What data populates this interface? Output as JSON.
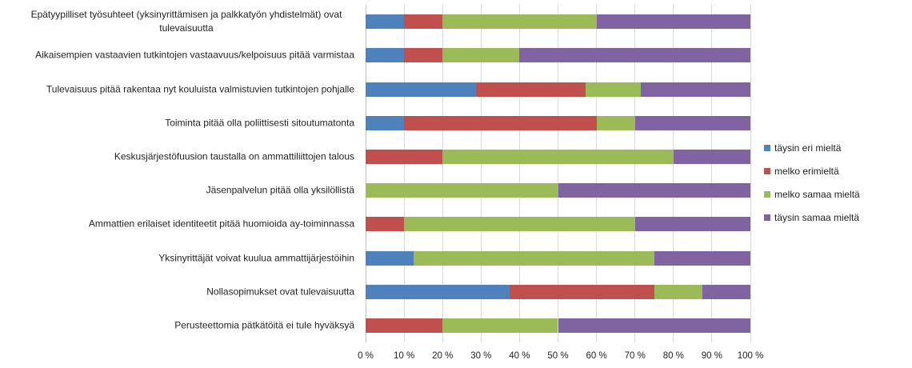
{
  "chart_data": {
    "type": "stacked_bar_horizontal",
    "categories": [
      "Epätyypilliset työsuhteet (yksinyrittämisen ja palkkatyön yhdistelmät) ovat tulevaisuutta",
      "Aikaisempien vastaavien tutkintojen vastaavuus/kelpoisuus pitää varmistaa",
      "Tulevaisuus pitää rakentaa nyt kouluista valmistuvien tutkintojen pohjalle",
      "Toiminta pitää olla poliittisesti sitoutumatonta",
      "Keskusjärjestöfuusion taustalla on ammattiliittojen talous",
      "Jäsenpalvelun pitää olla yksilöllistä",
      "Ammattien erilaiset identiteetit pitää huomioida ay-toiminnassa",
      "Yksinyrittäjät voivat kuulua ammattijärjestöihin",
      "Nollasopimukset ovat tulevaisuutta",
      "Perusteettomia pätkätöitä ei tule hyväksyä"
    ],
    "series": [
      {
        "name": "täysin eri mieltä",
        "color": "#4f81bd",
        "values": [
          10,
          10,
          28.6,
          10,
          0,
          0,
          0,
          12.5,
          37.5,
          0
        ]
      },
      {
        "name": "melko erimieltä",
        "color": "#c0504d",
        "values": [
          10,
          10,
          28.6,
          50,
          20,
          0,
          10,
          0,
          37.5,
          20
        ]
      },
      {
        "name": "melko samaa mieltä",
        "color": "#9bbb59",
        "values": [
          40,
          20,
          14.3,
          10,
          60,
          50,
          60,
          62.5,
          12.5,
          30
        ]
      },
      {
        "name": "täysin samaa mieltä",
        "color": "#8064a2",
        "values": [
          40,
          60,
          28.5,
          30,
          20,
          50,
          30,
          25,
          12.5,
          50
        ]
      }
    ],
    "xlim": [
      0,
      100
    ],
    "xticks": [
      {
        "value": 0,
        "label": "0 %"
      },
      {
        "value": 10,
        "label": "10 %"
      },
      {
        "value": 20,
        "label": "20 %"
      },
      {
        "value": 30,
        "label": "30 %"
      },
      {
        "value": 40,
        "label": "40 %"
      },
      {
        "value": 50,
        "label": "50 %"
      },
      {
        "value": 60,
        "label": "60 %"
      },
      {
        "value": 70,
        "label": "70 %"
      },
      {
        "value": 80,
        "label": "80 %"
      },
      {
        "value": 90,
        "label": "90 %"
      },
      {
        "value": 100,
        "label": "100 %"
      }
    ],
    "grid": true,
    "legend": "right"
  }
}
